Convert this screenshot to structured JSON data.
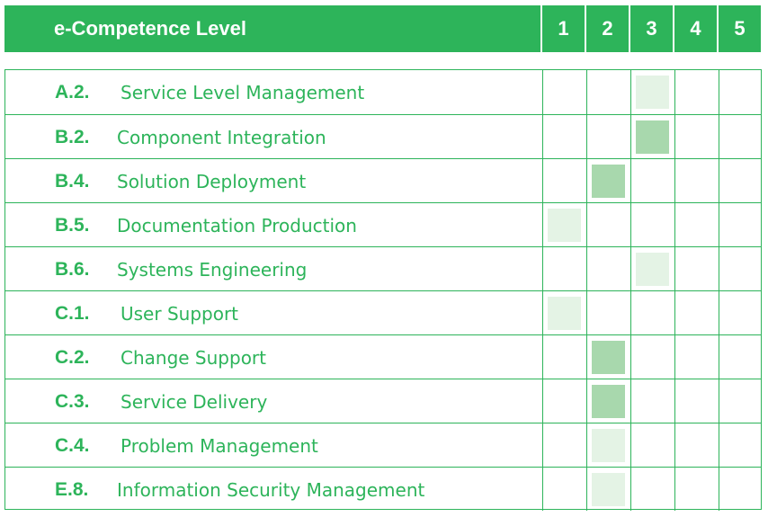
{
  "header": {
    "title": "e-Competence Level",
    "levels": [
      "1",
      "2",
      "3",
      "4",
      "5"
    ]
  },
  "colors": {
    "accent": "#2db45a",
    "mark_dark": "#a8d8ad",
    "mark_light": "#e4f3e5"
  },
  "rows": [
    {
      "code": "A.2.",
      "name": "Service Level Management",
      "level": 3,
      "shade": "light"
    },
    {
      "code": "B.2.",
      "name": "Component Integration",
      "level": 3,
      "shade": "dark"
    },
    {
      "code": "B.4.",
      "name": "Solution Deployment",
      "level": 2,
      "shade": "dark"
    },
    {
      "code": "B.5.",
      "name": "Documentation Production",
      "level": 1,
      "shade": "light"
    },
    {
      "code": "B.6.",
      "name": "Systems Engineering",
      "level": 3,
      "shade": "light"
    },
    {
      "code": "C.1.",
      "name": "User Support",
      "level": 1,
      "shade": "light"
    },
    {
      "code": "C.2.",
      "name": "Change Support",
      "level": 2,
      "shade": "dark"
    },
    {
      "code": "C.3.",
      "name": "Service Delivery",
      "level": 2,
      "shade": "dark"
    },
    {
      "code": "C.4.",
      "name": "Problem Management",
      "level": 2,
      "shade": "light"
    },
    {
      "code": "E.8.",
      "name": "Information Security Management",
      "level": 2,
      "shade": "light"
    }
  ]
}
